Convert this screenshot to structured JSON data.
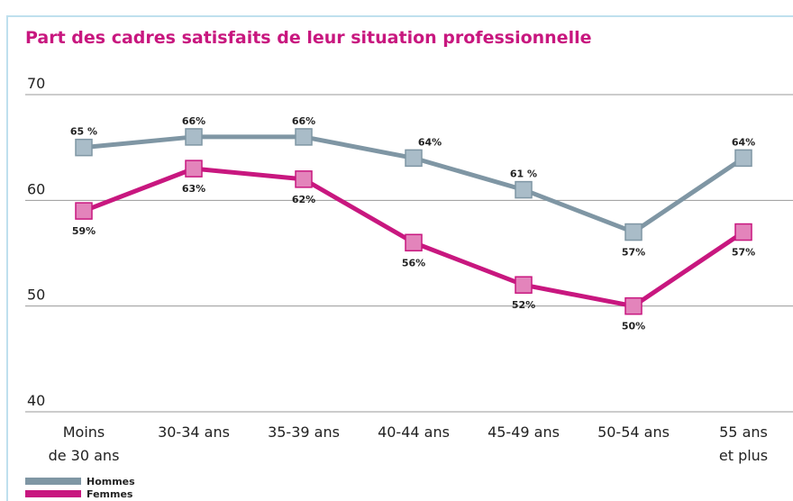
{
  "chart_data": {
    "type": "line",
    "title": "Part des cadres satisfaits de leur situation professionnelle",
    "categories": [
      "Moins\nde 30 ans",
      "30-34 ans",
      "35-39 ans",
      "40-44 ans",
      "45-49 ans",
      "50-54 ans",
      "55 ans\net plus"
    ],
    "series": [
      {
        "name": "Hommes",
        "color": "#7f96a4",
        "marker_color": "#a9bcc8",
        "values": [
          65,
          66,
          66,
          64,
          61,
          57,
          64
        ],
        "value_labels": [
          "65 %",
          "66%",
          "66%",
          "64%",
          "61 %",
          "57%",
          "64%"
        ]
      },
      {
        "name": "Femmes",
        "color": "#c8177f",
        "marker_color": "#e384bb",
        "values": [
          59,
          63,
          62,
          56,
          52,
          50,
          57
        ],
        "value_labels": [
          "59%",
          "63%",
          "62%",
          "56%",
          "52%",
          "50%",
          "57%"
        ]
      }
    ],
    "ylim": [
      40,
      70
    ],
    "yticks": [
      40,
      50,
      60,
      70
    ],
    "grid": true
  }
}
